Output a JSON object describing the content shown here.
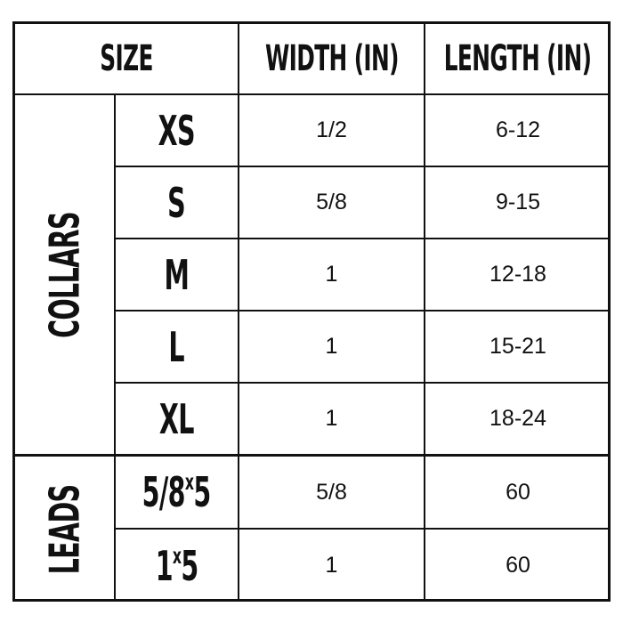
{
  "header": {
    "size": "SIZE",
    "width": "WIDTH (IN)",
    "length": "LENGTH (IN)"
  },
  "groups": [
    {
      "label": "COLLARS",
      "rows": [
        {
          "size": "XS",
          "width": "1/2",
          "length": "6-12"
        },
        {
          "size": "S",
          "width": "5/8",
          "length": "9-15"
        },
        {
          "size": "M",
          "width": "1",
          "length": "12-18"
        },
        {
          "size": "L",
          "width": "1",
          "length": "15-21"
        },
        {
          "size": "XL",
          "width": "1",
          "length": "18-24"
        }
      ]
    },
    {
      "label": "LEADS",
      "rows": [
        {
          "size_main": "5/8",
          "size_sup": "x",
          "size_tail": "5",
          "width": "5/8",
          "length": "60"
        },
        {
          "size_main": "1",
          "size_sup": "x",
          "size_tail": "5",
          "width": "1",
          "length": "60"
        }
      ]
    }
  ]
}
